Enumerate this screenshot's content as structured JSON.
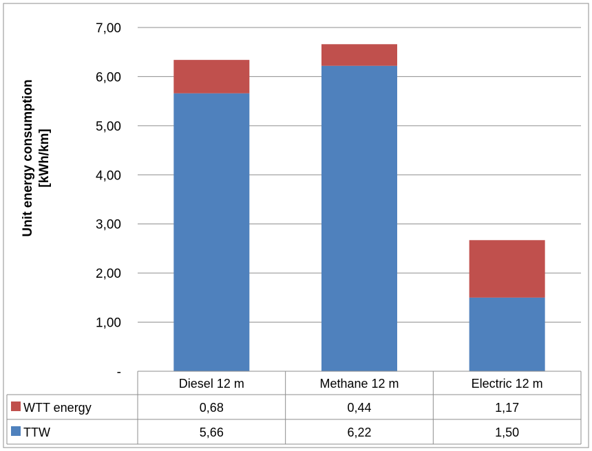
{
  "chart_data": {
    "type": "bar",
    "stacked": true,
    "categories": [
      "Diesel 12 m",
      "Methane 12 m",
      "Electric 12 m"
    ],
    "series": [
      {
        "name": "TTW",
        "values": [
          5.66,
          6.22,
          1.5
        ],
        "labels": [
          "5,66",
          "6,22",
          "1,50"
        ],
        "color": "#4f81bd"
      },
      {
        "name": "WTT energy",
        "values": [
          0.68,
          0.44,
          1.17
        ],
        "labels": [
          "0,68",
          "0,44",
          "1,17"
        ],
        "color": "#c0504d"
      }
    ],
    "ylabel_lines": [
      "Unit energy consumption",
      "[kWh/km]"
    ],
    "ylim": [
      0,
      7
    ],
    "yticks": [
      0,
      1,
      2,
      3,
      4,
      5,
      6,
      7
    ],
    "ytick_labels": [
      "-",
      "1,00",
      "2,00",
      "3,00",
      "4,00",
      "5,00",
      "6,00",
      "7,00"
    ],
    "grid": true,
    "legend": "data-table"
  }
}
